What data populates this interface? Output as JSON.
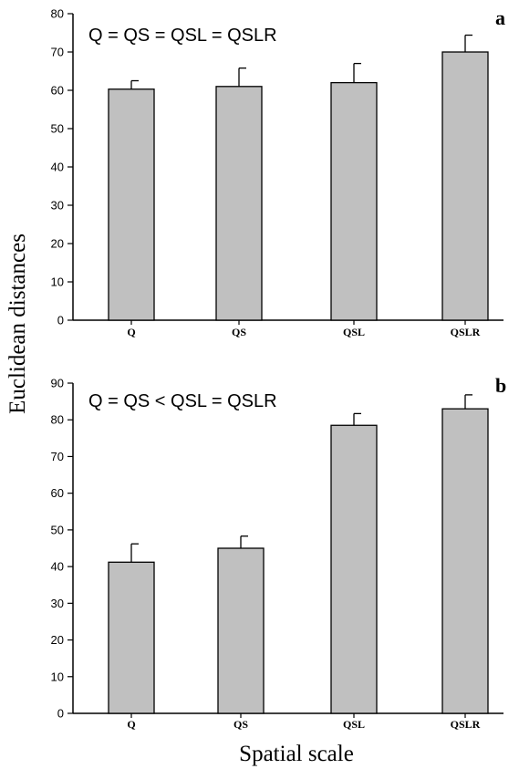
{
  "figure": {
    "ylabel": "Euclidean distances",
    "xlabel": "Spatial scale"
  },
  "chart_data": [
    {
      "type": "bar",
      "panel": "a",
      "annotation": "Q = QS = QSL = QSLR",
      "categories": [
        "Q",
        "QS",
        "QSL",
        "QSLR"
      ],
      "values": [
        60.3,
        61.0,
        62.0,
        70.0
      ],
      "errors": [
        2.2,
        4.8,
        5.0,
        4.4
      ],
      "ylim": [
        0,
        80
      ],
      "yticks": [
        0,
        10,
        20,
        30,
        40,
        50,
        60,
        70,
        80
      ],
      "bar_color": "#c0c0c0"
    },
    {
      "type": "bar",
      "panel": "b",
      "annotation": "Q = QS < QSL = QSLR",
      "categories": [
        "Q",
        "QS",
        "QSL",
        "QSLR"
      ],
      "values": [
        41.2,
        45.0,
        78.5,
        83.0
      ],
      "errors": [
        5.0,
        3.3,
        3.2,
        3.8
      ],
      "ylim": [
        0,
        90
      ],
      "yticks": [
        0,
        10,
        20,
        30,
        40,
        50,
        60,
        70,
        80,
        90
      ],
      "bar_color": "#c0c0c0"
    }
  ]
}
